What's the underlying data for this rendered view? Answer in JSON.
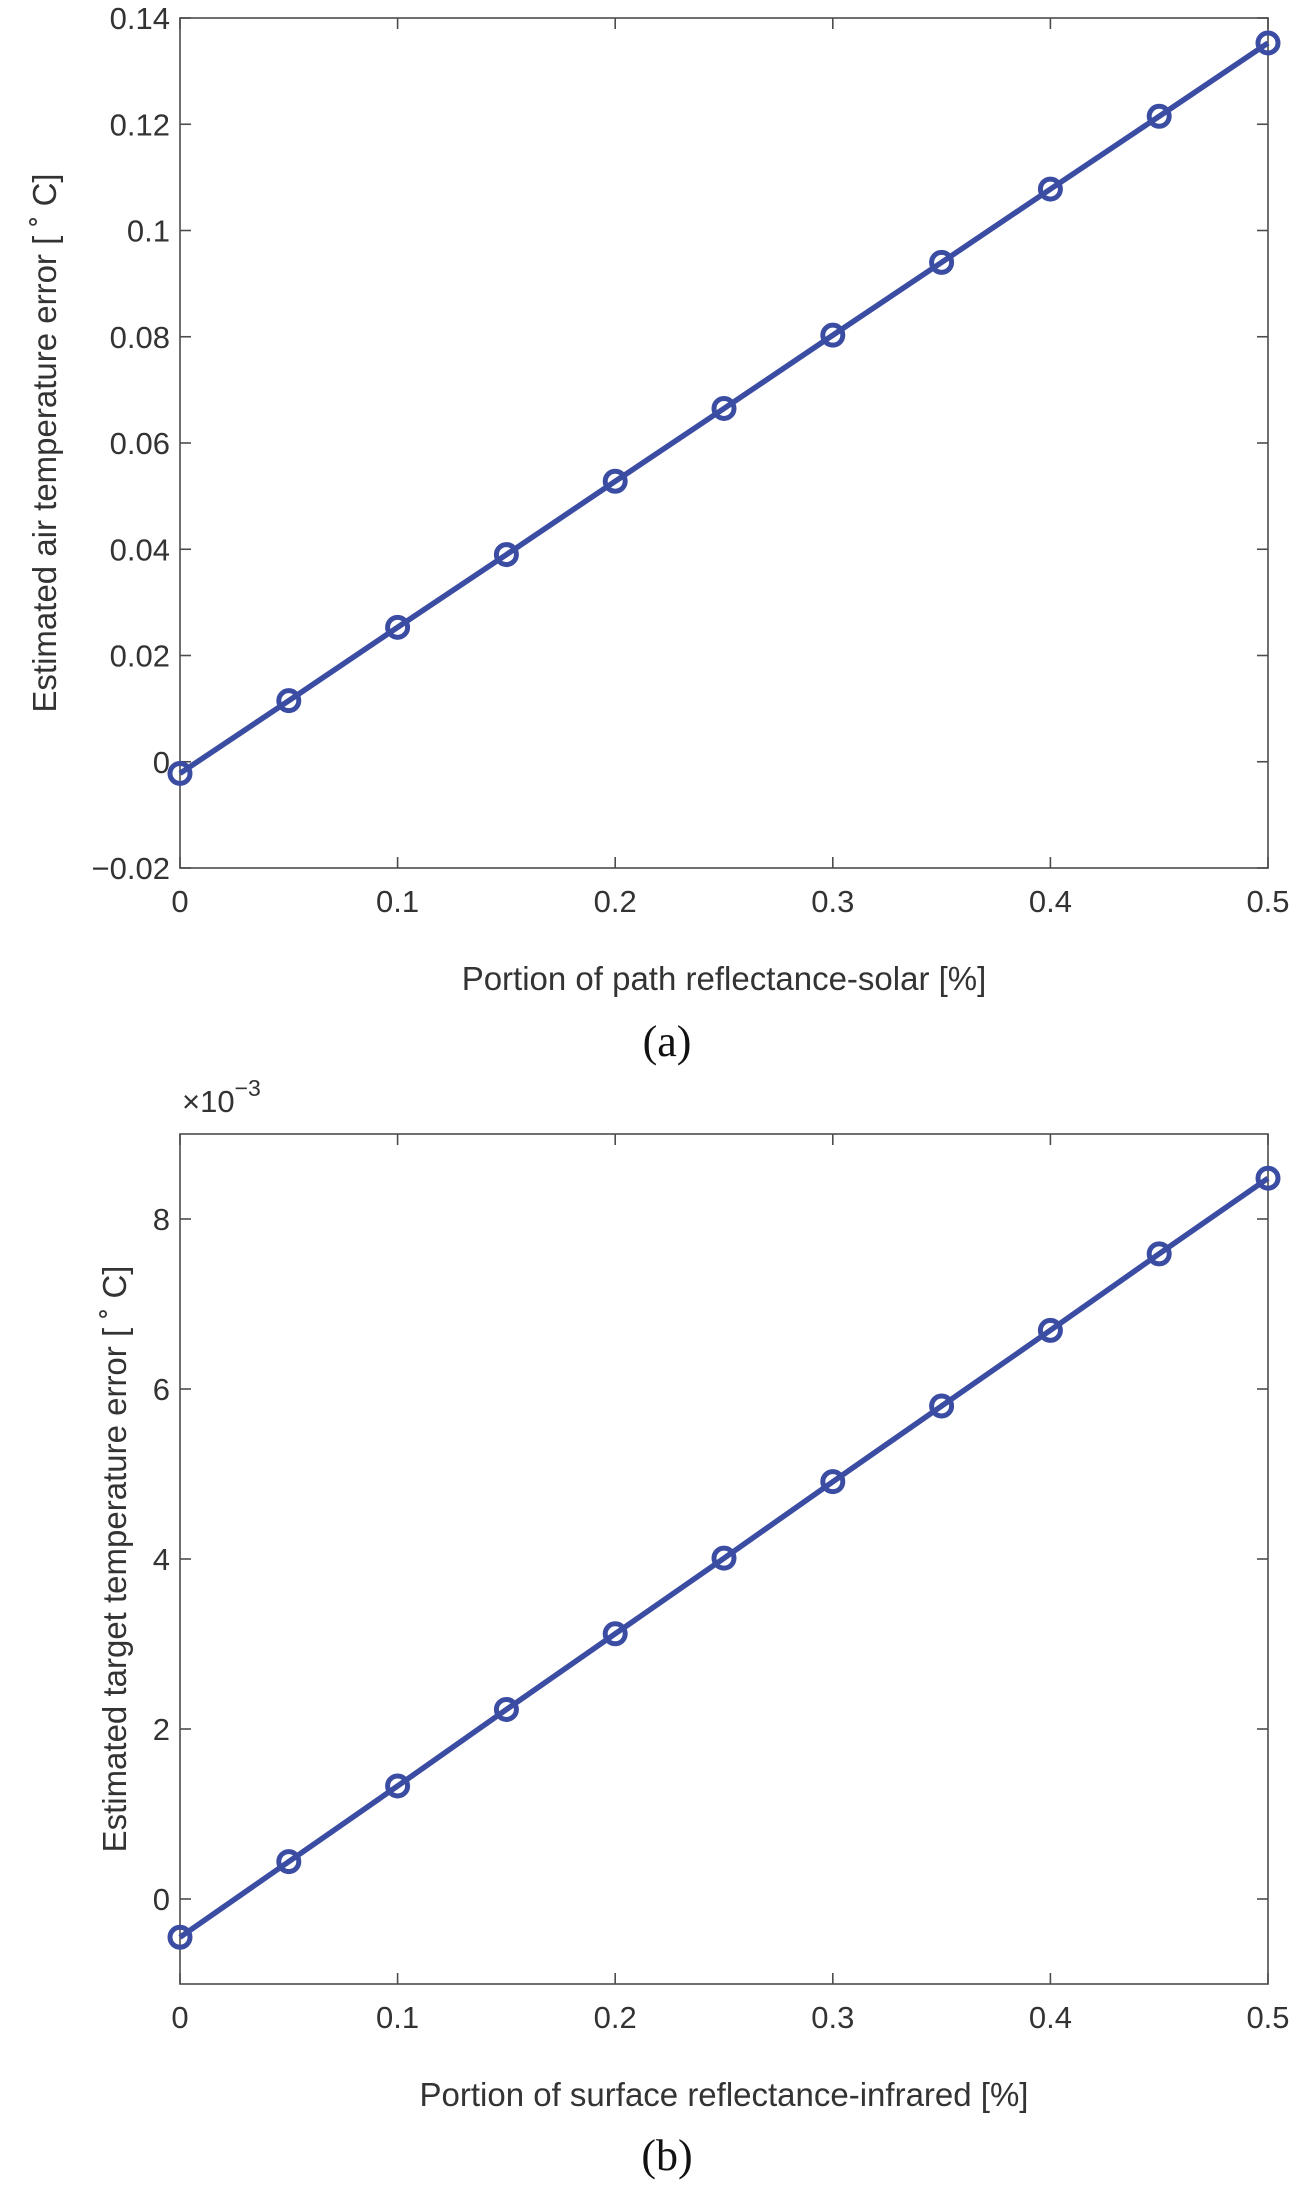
{
  "colors": {
    "series": "#3b4ca3",
    "axis": "#4d4d4d",
    "text": "#333333"
  },
  "chart_data": [
    {
      "type": "line",
      "caption": "(a)",
      "xlabel": "Portion of path reflectance-solar [%]",
      "ylabel": "Estimated air temperature error [ ˚ C]",
      "exponent_label": "",
      "xlim": [
        0,
        0.5
      ],
      "ylim": [
        -0.02,
        0.14
      ],
      "xticks": [
        0,
        0.1,
        0.2,
        0.3,
        0.4,
        0.5
      ],
      "xtick_labels": [
        "0",
        "0.1",
        "0.2",
        "0.3",
        "0.4",
        "0.5"
      ],
      "yticks": [
        -0.02,
        0,
        0.02,
        0.04,
        0.06,
        0.08,
        0.1,
        0.12,
        0.14
      ],
      "ytick_labels": [
        "−0.02",
        "0",
        "0.02",
        "0.04",
        "0.06",
        "0.08",
        "0.1",
        "0.12",
        "0.14"
      ],
      "grid": false,
      "marker": "circle",
      "x": [
        0,
        0.05,
        0.1,
        0.15,
        0.2,
        0.25,
        0.3,
        0.35,
        0.4,
        0.45,
        0.5
      ],
      "y": [
        -0.0022,
        0.0115,
        0.0253,
        0.039,
        0.0528,
        0.0665,
        0.0803,
        0.094,
        0.1078,
        0.1215,
        0.1353
      ]
    },
    {
      "type": "line",
      "caption": "(b)",
      "xlabel": "Portion of surface reflectance-infrared [%]",
      "ylabel": "Estimated target temperature error [ ˚ C]",
      "exponent_label": "×10",
      "exponent_power": "−3",
      "xlim": [
        0,
        0.5
      ],
      "ylim": [
        -1,
        9
      ],
      "xticks": [
        0,
        0.1,
        0.2,
        0.3,
        0.4,
        0.5
      ],
      "xtick_labels": [
        "0",
        "0.1",
        "0.2",
        "0.3",
        "0.4",
        "0.5"
      ],
      "yticks": [
        0,
        2,
        4,
        6,
        8
      ],
      "ytick_labels": [
        "0",
        "2",
        "4",
        "6",
        "8"
      ],
      "grid": false,
      "marker": "circle",
      "x": [
        0,
        0.05,
        0.1,
        0.15,
        0.2,
        0.25,
        0.3,
        0.35,
        0.4,
        0.45,
        0.5
      ],
      "y": [
        -0.45,
        0.44,
        1.33,
        2.23,
        3.12,
        4.01,
        4.91,
        5.8,
        6.69,
        7.59,
        8.48
      ]
    }
  ]
}
